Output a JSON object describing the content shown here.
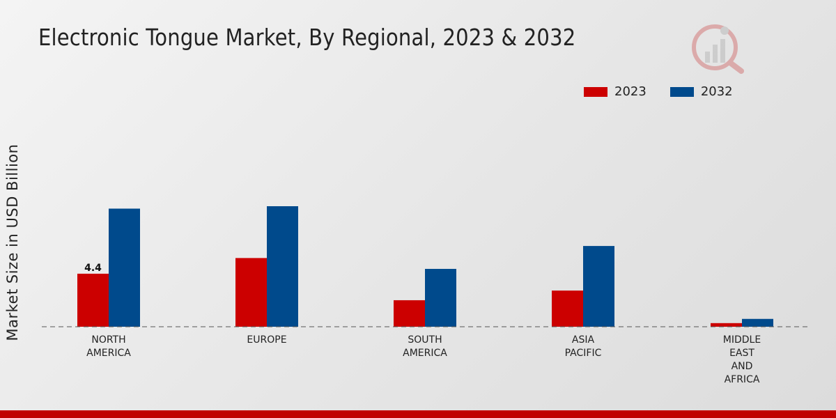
{
  "chart_data": {
    "type": "bar",
    "title": "Electronic Tongue Market, By Regional, 2023 & 2032",
    "xlabel": "",
    "ylabel": "Market Size in USD Billion",
    "ylim": [
      0,
      10
    ],
    "categories": [
      [
        "NORTH",
        "AMERICA"
      ],
      [
        "EUROPE"
      ],
      [
        "SOUTH",
        "AMERICA"
      ],
      [
        "ASIA",
        "PACIFIC"
      ],
      [
        "MIDDLE",
        "EAST",
        "AND",
        "AFRICA"
      ]
    ],
    "series": [
      {
        "name": "2023",
        "color": "#cc0000",
        "values": [
          4.4,
          5.7,
          2.2,
          3.0,
          0.3
        ]
      },
      {
        "name": "2032",
        "color": "#004a8c",
        "values": [
          9.8,
          10.0,
          4.8,
          6.7,
          0.65
        ]
      }
    ],
    "data_labels": [
      {
        "series": 0,
        "index": 0,
        "text": "4.4"
      }
    ],
    "legend_position": "top-right",
    "grid": false
  },
  "colors": {
    "accent_red": "#cc0000",
    "accent_blue": "#004a8c",
    "footer": "#c00000"
  }
}
